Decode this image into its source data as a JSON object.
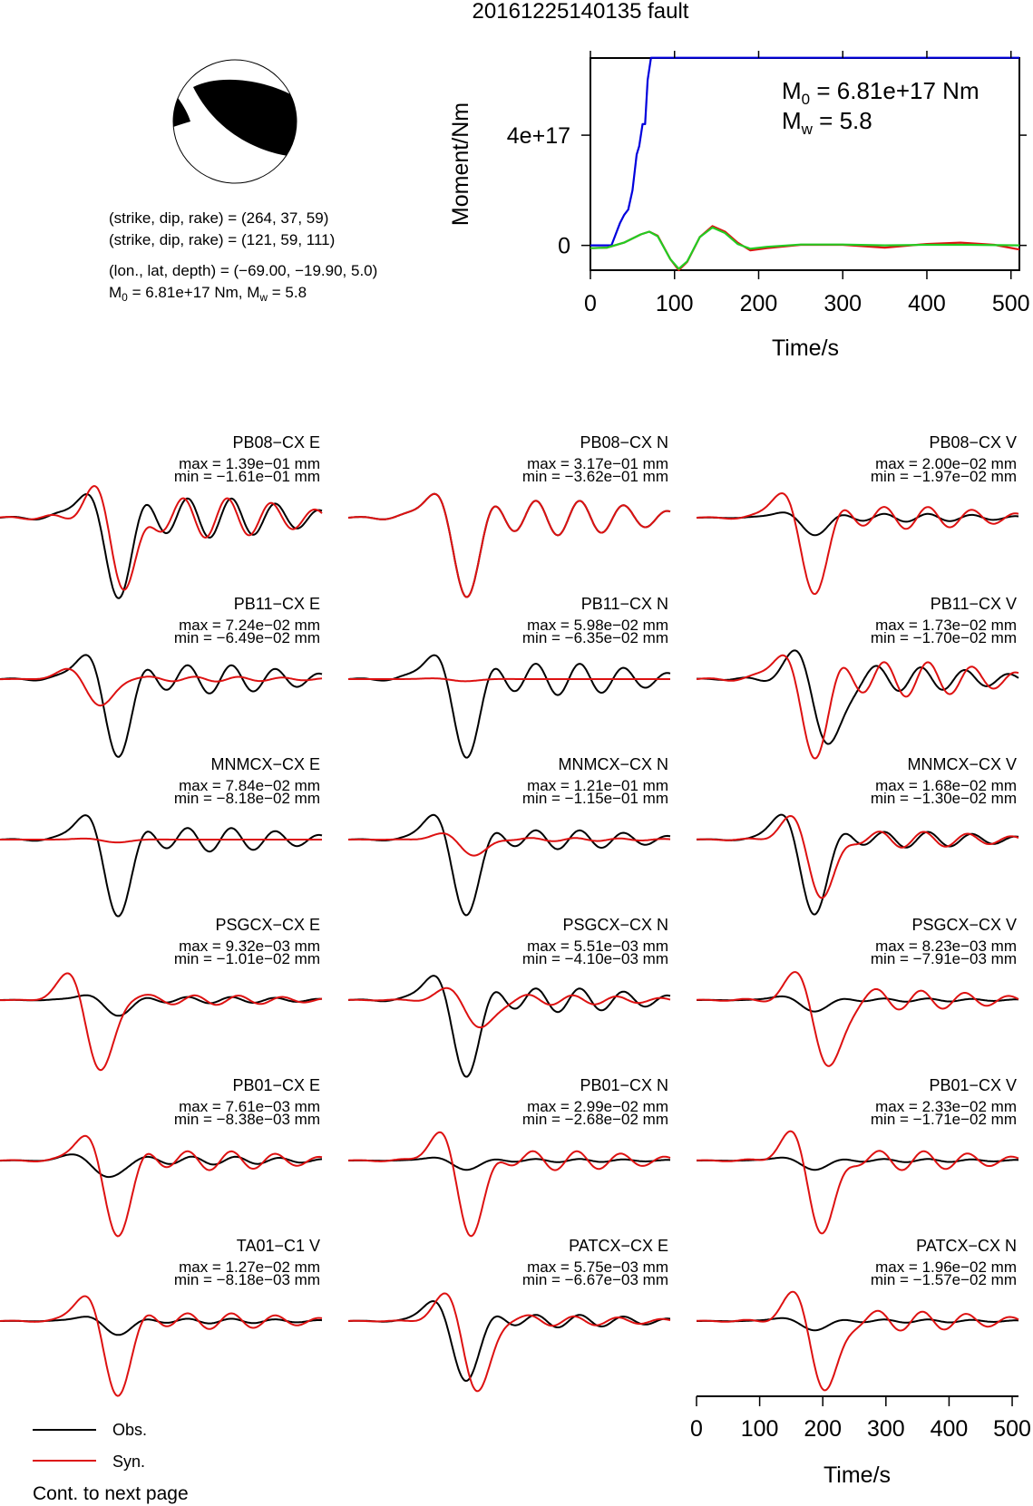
{
  "page": {
    "title": "20161225140135 fault",
    "continued": "Cont. to next page"
  },
  "source": {
    "nodal_plane_1": "(strike, dip, rake) = (264, 37, 59)",
    "nodal_plane_2": "(strike, dip, rake) = (121, 59, 111)",
    "location": "(lon., lat, depth) = (−69.00, −19.90, 5.0)",
    "m0_prefix": "M",
    "m0_sub": "0",
    "m0_value": " = 6.81e+17 Nm, M",
    "mw_sub": "w",
    "mw_value": " = 5.8"
  },
  "colors": {
    "observed": "#000000",
    "synthetic": "#dd1111",
    "cumulative": "#0000dd",
    "stf_green": "#22cc22"
  },
  "legend": {
    "obs": "Obs.",
    "syn": "Syn."
  },
  "chart_data": [
    {
      "type": "line",
      "name": "moment-function",
      "ylabel": "Moment/Nm",
      "xlabel": "Time/s",
      "xlim": [
        0,
        510
      ],
      "ylim": [
        -9e+16,
        6.8e+17
      ],
      "x_ticks": [
        "0",
        "100",
        "200",
        "300",
        "400",
        "500"
      ],
      "y_ticks": [
        "0",
        "4e+17"
      ],
      "annotation": {
        "m0_prefix": "M",
        "m0_sub": "0",
        "m0_value": " = 6.81e+17 Nm",
        "mw_prefix": "M",
        "mw_sub": "w",
        "mw_value": " = 5.8"
      },
      "series": [
        {
          "color_key": "cumulative",
          "x": [
            0,
            25,
            35,
            40,
            45,
            50,
            55,
            58,
            62,
            65,
            68,
            72,
            80,
            150,
            300,
            510
          ],
          "y": [
            0,
            0,
            8e+16,
            1.1e+17,
            1.3e+17,
            2e+17,
            3.3e+17,
            3.6e+17,
            4.4e+17,
            4.4e+17,
            6e+17,
            6.81e+17,
            6.81e+17,
            6.81e+17,
            6.81e+17,
            6.81e+17
          ]
        },
        {
          "color_key": "synthetic",
          "x": [
            0,
            20,
            40,
            60,
            70,
            80,
            95,
            105,
            115,
            130,
            145,
            160,
            175,
            190,
            210,
            250,
            300,
            350,
            400,
            440,
            480,
            510
          ],
          "y": [
            -1e+16,
            -8000000000000000.0,
            1e+16,
            4e+16,
            5e+16,
            3.5e+16,
            -5e+16,
            -9e+16,
            -6e+16,
            3e+16,
            7e+16,
            5e+16,
            1e+16,
            -1.8e+16,
            -1e+16,
            2000000000000000.0,
            2000000000000000.0,
            -8000000000000000.0,
            5000000000000000.0,
            1e+16,
            2000000000000000.0,
            -1.5e+16
          ]
        },
        {
          "color_key": "stf_green",
          "x": [
            0,
            20,
            40,
            60,
            70,
            80,
            95,
            105,
            115,
            130,
            145,
            160,
            175,
            190,
            210,
            250,
            300,
            350,
            400,
            450,
            510
          ],
          "y": [
            -1e+16,
            -8000000000000000.0,
            1e+16,
            4e+16,
            5e+16,
            3.3e+16,
            -5e+16,
            -8.5e+16,
            -5.8e+16,
            3e+16,
            6.5e+16,
            4.5e+16,
            5000000000000000.0,
            -1.2e+16,
            -5000000000000000.0,
            3000000000000000.0,
            3000000000000000.0,
            0.0,
            2000000000000000.0,
            2000000000000000.0,
            0.0
          ]
        }
      ]
    },
    {
      "type": "line",
      "name": "waveform-time-axis",
      "xlabel": "Time/s",
      "xlim": [
        0,
        510
      ],
      "x_ticks": [
        "0",
        "100",
        "200",
        "300",
        "400",
        "500"
      ]
    },
    {
      "type": "line",
      "name": "waveform-panels",
      "panels": [
        {
          "station": "PB08−CX E",
          "max": "max = 1.39e−01 mm",
          "min": "min = −1.61e−01 mm",
          "obs_amp": 1.0,
          "syn_amp": 0.95,
          "obs_phase": 0.0,
          "syn_phase": 0.03,
          "obs_tail": 0.25,
          "syn_tail": 0.25
        },
        {
          "station": "PB08−CX N",
          "max": "max = 3.17e−01 mm",
          "min": "min = −3.62e−01 mm",
          "obs_amp": 1.0,
          "syn_amp": 1.0,
          "obs_phase": 0.0,
          "syn_phase": 0.0,
          "obs_tail": 0.22,
          "syn_tail": 0.22
        },
        {
          "station": "PB08−CX V",
          "max": "max = 2.00e−02 mm",
          "min": "min = −1.97e−02 mm",
          "obs_amp": 0.22,
          "syn_amp": 1.0,
          "obs_phase": 0.0,
          "syn_phase": 0.0,
          "obs_tail": 0.05,
          "syn_tail": 0.14
        },
        {
          "station": "PB11−CX E",
          "max": "max = 7.24e−02 mm",
          "min": "min = −6.49e−02 mm",
          "obs_amp": 1.0,
          "syn_amp": 0.38,
          "obs_phase": 0.0,
          "syn_phase": -0.05,
          "obs_tail": 0.18,
          "syn_tail": 0.03
        },
        {
          "station": "PB11−CX N",
          "max": "max = 5.98e−02 mm",
          "min": "min = −6.35e−02 mm",
          "obs_amp": 1.0,
          "syn_amp": 0.03,
          "obs_phase": 0.0,
          "syn_phase": 0.0,
          "obs_tail": 0.2,
          "syn_tail": 0.0
        },
        {
          "station": "PB11−CX V",
          "max": "max = 1.73e−02 mm",
          "min": "min = −1.70e−02 mm",
          "obs_amp": 1.0,
          "syn_amp": 1.0,
          "obs_phase": 0.05,
          "syn_phase": 0.0,
          "obs_tail": 0.15,
          "syn_tail": 0.22
        },
        {
          "station": "MNMCX−CX E",
          "max": "max = 7.84e−02 mm",
          "min": "min = −8.18e−02 mm",
          "obs_amp": 1.0,
          "syn_amp": 0.04,
          "obs_phase": 0.0,
          "syn_phase": 0.0,
          "obs_tail": 0.15,
          "syn_tail": 0.0
        },
        {
          "station": "MNMCX−CX N",
          "max": "max = 1.21e−01 mm",
          "min": "min = −1.15e−01 mm",
          "obs_amp": 1.0,
          "syn_amp": 0.22,
          "obs_phase": 0.0,
          "syn_phase": 0.03,
          "obs_tail": 0.12,
          "syn_tail": 0.02
        },
        {
          "station": "MNMCX−CX V",
          "max": "max = 1.68e−02 mm",
          "min": "min = −1.30e−02 mm",
          "obs_amp": 1.0,
          "syn_amp": 0.8,
          "obs_phase": 0.0,
          "syn_phase": 0.03,
          "obs_tail": 0.1,
          "syn_tail": 0.1
        },
        {
          "station": "PSGCX−CX E",
          "max": "max = 9.32e−03 mm",
          "min": "min = −1.01e−02 mm",
          "obs_amp": 0.2,
          "syn_amp": 1.0,
          "obs_phase": 0.0,
          "syn_phase": -0.05,
          "obs_tail": 0.04,
          "syn_tail": 0.06
        },
        {
          "station": "PSGCX−CX N",
          "max": "max = 5.51e−03 mm",
          "min": "min = −4.10e−03 mm",
          "obs_amp": 1.0,
          "syn_amp": 0.42,
          "obs_phase": 0.0,
          "syn_phase": 0.05,
          "obs_tail": 0.15,
          "syn_tail": 0.06
        },
        {
          "station": "PSGCX−CX V",
          "max": "max = 8.23e−03 mm",
          "min": "min = −7.91e−03 mm",
          "obs_amp": 0.15,
          "syn_amp": 1.0,
          "obs_phase": 0.0,
          "syn_phase": 0.05,
          "obs_tail": 0.02,
          "syn_tail": 0.12
        },
        {
          "station": "PB01−CX E",
          "max": "max = 7.61e−03 mm",
          "min": "min = −8.38e−03 mm",
          "obs_amp": 0.25,
          "syn_amp": 1.0,
          "obs_phase": -0.03,
          "syn_phase": 0.0,
          "obs_tail": 0.05,
          "syn_tail": 0.12
        },
        {
          "station": "PB01−CX N",
          "max": "max = 2.99e−02 mm",
          "min": "min = −2.68e−02 mm",
          "obs_amp": 0.12,
          "syn_amp": 1.0,
          "obs_phase": 0.0,
          "syn_phase": 0.02,
          "obs_tail": 0.02,
          "syn_tail": 0.12
        },
        {
          "station": "PB01−CX V",
          "max": "max = 2.33e−02 mm",
          "min": "min = −1.71e−02 mm",
          "obs_amp": 0.12,
          "syn_amp": 1.0,
          "obs_phase": 0.0,
          "syn_phase": 0.03,
          "obs_tail": 0.02,
          "syn_tail": 0.12
        },
        {
          "station": "TA01−C1 V",
          "max": "max = 1.27e−02 mm",
          "min": "min = −8.18e−03 mm",
          "obs_amp": 0.18,
          "syn_amp": 1.0,
          "obs_phase": 0.0,
          "syn_phase": 0.0,
          "obs_tail": 0.03,
          "syn_tail": 0.1
        },
        {
          "station": "PATCX−CX E",
          "max": "max = 5.75e−03 mm",
          "min": "min = −6.67e−03 mm",
          "obs_amp": 0.8,
          "syn_amp": 1.0,
          "obs_phase": 0.0,
          "syn_phase": 0.04,
          "obs_tail": 0.08,
          "syn_tail": 0.06
        },
        {
          "station": "PATCX−CX N",
          "max": "max = 1.96e−02 mm",
          "min": "min = −1.57e−02 mm",
          "obs_amp": 0.12,
          "syn_amp": 1.0,
          "obs_phase": 0.0,
          "syn_phase": 0.04,
          "obs_tail": 0.02,
          "syn_tail": 0.12
        }
      ]
    }
  ]
}
